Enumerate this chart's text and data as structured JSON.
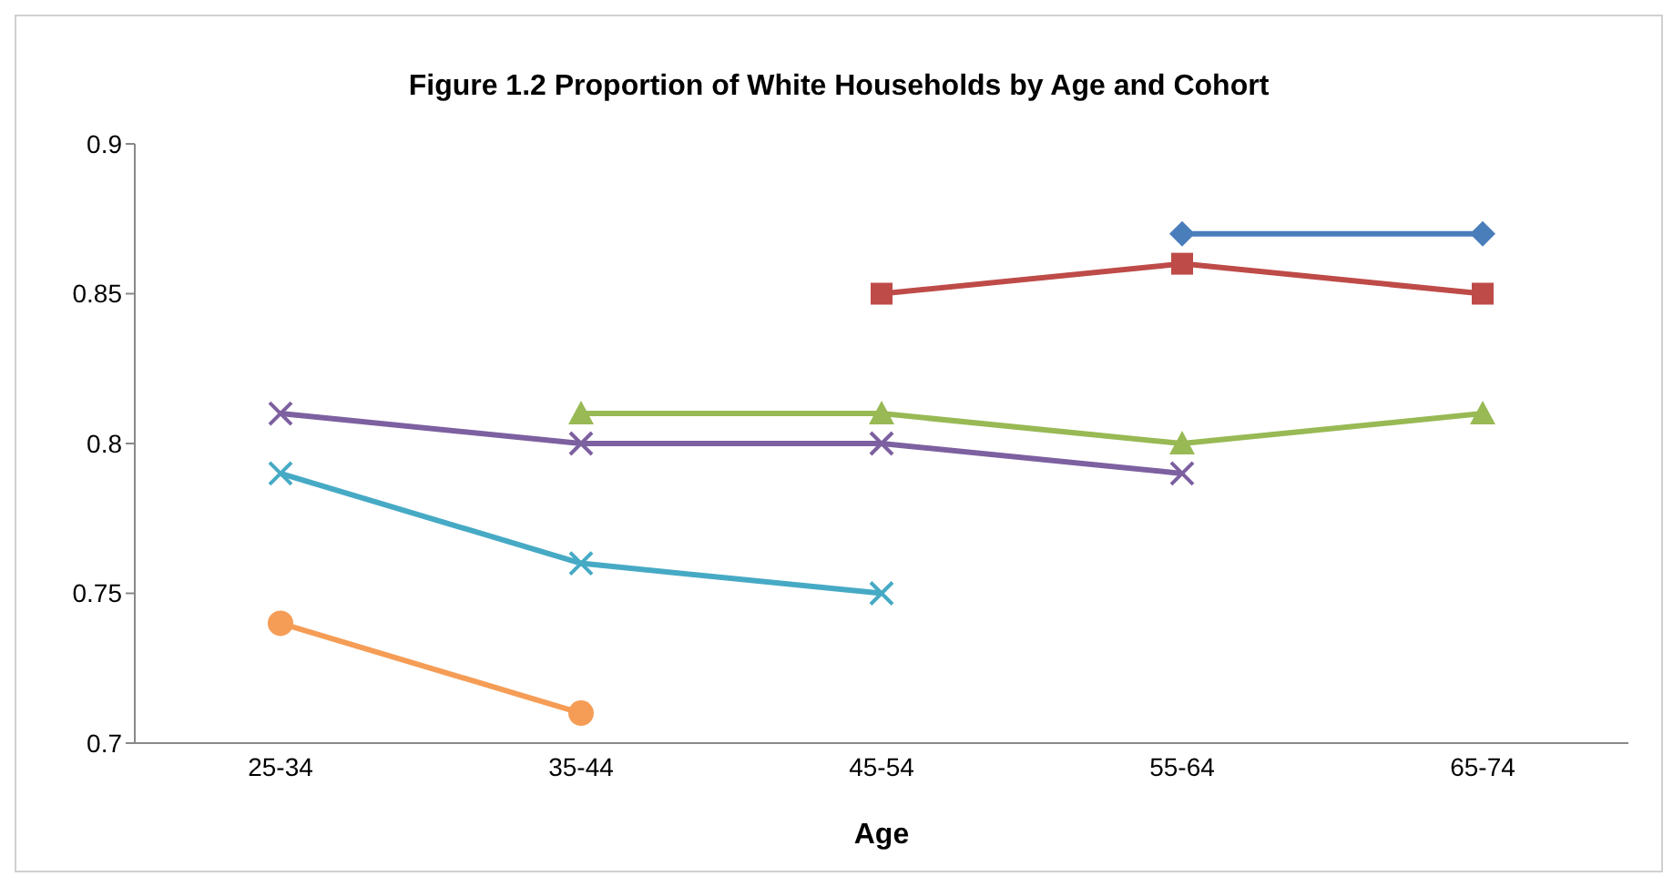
{
  "chart_data": {
    "type": "line",
    "title": "Figure 1.2 Proportion of White Households by Age and Cohort",
    "xlabel": "Age",
    "categories": [
      "25-34",
      "35-44",
      "45-54",
      "55-64",
      "65-74"
    ],
    "series": [
      {
        "color": "#4a7ebb",
        "marker": "diamond",
        "values": [
          null,
          null,
          null,
          0.87,
          0.87
        ]
      },
      {
        "color": "#be4b48",
        "marker": "square",
        "values": [
          null,
          null,
          0.85,
          0.86,
          0.85
        ]
      },
      {
        "color": "#98b954",
        "marker": "triangle",
        "values": [
          null,
          0.81,
          0.81,
          0.8,
          0.81
        ]
      },
      {
        "color": "#7d60a0",
        "marker": "cross",
        "values": [
          0.81,
          0.8,
          0.8,
          0.79,
          null
        ]
      },
      {
        "color": "#46aac5",
        "marker": "cross",
        "values": [
          0.79,
          0.76,
          0.75,
          null,
          null
        ]
      },
      {
        "color": "#f59d56",
        "marker": "circle",
        "values": [
          0.74,
          0.71,
          null,
          null,
          null
        ]
      }
    ],
    "ylim": [
      0.7,
      0.9
    ],
    "yticks": [
      0.7,
      0.75,
      0.8,
      0.85,
      0.9
    ],
    "grid": false,
    "legend": false
  }
}
